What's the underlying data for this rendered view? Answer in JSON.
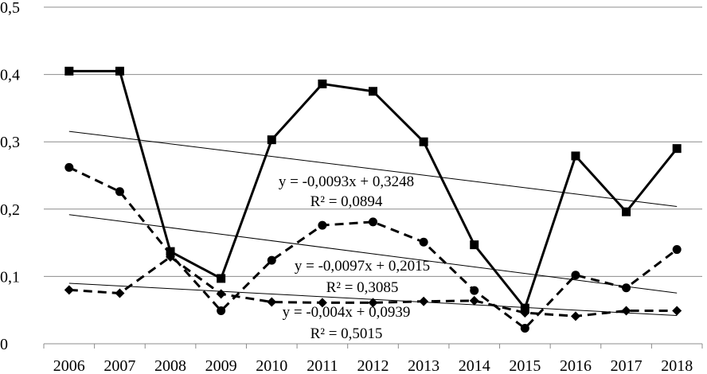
{
  "chart_data": {
    "type": "line",
    "categories": [
      "2006",
      "2007",
      "2008",
      "2009",
      "2010",
      "2011",
      "2012",
      "2013",
      "2014",
      "2015",
      "2016",
      "2017",
      "2018"
    ],
    "ylim": [
      0,
      0.5
    ],
    "y_ticks": [
      "0",
      "0,1",
      "0,2",
      "0,3",
      "0,4",
      "0,5"
    ],
    "grid": "horizontal",
    "series": [
      {
        "marker": "square",
        "line_style": "solid",
        "values": [
          0.405,
          0.405,
          0.137,
          0.097,
          0.303,
          0.386,
          0.375,
          0.3,
          0.147,
          0.053,
          0.279,
          0.196,
          0.29
        ]
      },
      {
        "marker": "circle",
        "line_style": "dashed",
        "values": [
          0.262,
          0.226,
          0.133,
          0.049,
          0.124,
          0.176,
          0.181,
          0.151,
          0.079,
          0.023,
          0.102,
          0.083,
          0.14
        ]
      },
      {
        "marker": "diamond",
        "line_style": "dashed",
        "values": [
          0.08,
          0.075,
          0.129,
          0.074,
          0.062,
          0.061,
          0.061,
          0.063,
          0.064,
          0.046,
          0.041,
          0.049,
          0.049
        ]
      }
    ],
    "trendlines": [
      {
        "series": 0,
        "slope": -0.0093,
        "intercept": 0.3248,
        "equation": "y = -0,0093x + 0,3248",
        "r2": "R² = 0,0894"
      },
      {
        "series": 1,
        "slope": -0.0097,
        "intercept": 0.2015,
        "equation": "y = -0,0097x + 0,2015",
        "r2": "R² = 0,3085"
      },
      {
        "series": 2,
        "slope": -0.004,
        "intercept": 0.0939,
        "equation": "y = -0,004x + 0,0939",
        "r2": "R² = 0,5015"
      }
    ]
  }
}
